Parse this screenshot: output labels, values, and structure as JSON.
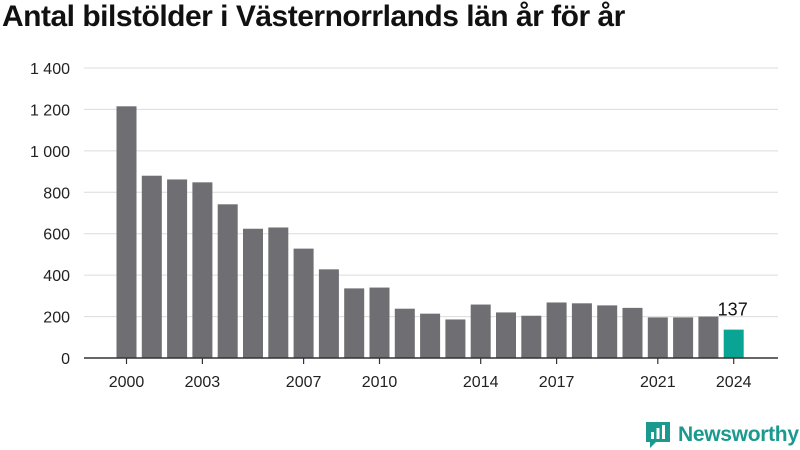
{
  "chart_data": {
    "type": "bar",
    "title": "Antal bilstölder i Västernorrlands län år för år",
    "xlabel": "",
    "ylabel": "",
    "ylim": [
      0,
      1400
    ],
    "yticks": [
      0,
      200,
      400,
      600,
      800,
      1000,
      1200,
      1400
    ],
    "ytick_labels": [
      "0",
      "200",
      "400",
      "600",
      "800",
      "1 000",
      "1 200",
      "1 400"
    ],
    "categories": [
      2000,
      2001,
      2002,
      2003,
      2004,
      2005,
      2006,
      2007,
      2008,
      2009,
      2010,
      2011,
      2012,
      2013,
      2014,
      2015,
      2016,
      2017,
      2018,
      2019,
      2020,
      2021,
      2022,
      2023,
      2024
    ],
    "values": [
      1215,
      880,
      862,
      848,
      742,
      624,
      630,
      528,
      428,
      336,
      340,
      238,
      214,
      186,
      258,
      220,
      204,
      268,
      264,
      254,
      242,
      196,
      196,
      200,
      137
    ],
    "xtick_labels": [
      "2000",
      "2003",
      "2007",
      "2010",
      "2014",
      "2017",
      "2021",
      "2024"
    ],
    "highlight": {
      "category": 2024,
      "label": "137",
      "color": "#0aa494"
    },
    "bar_color": "#6e6e73",
    "grid": true
  },
  "brand": {
    "name": "Newsworthy",
    "color": "#1a9a8e"
  }
}
